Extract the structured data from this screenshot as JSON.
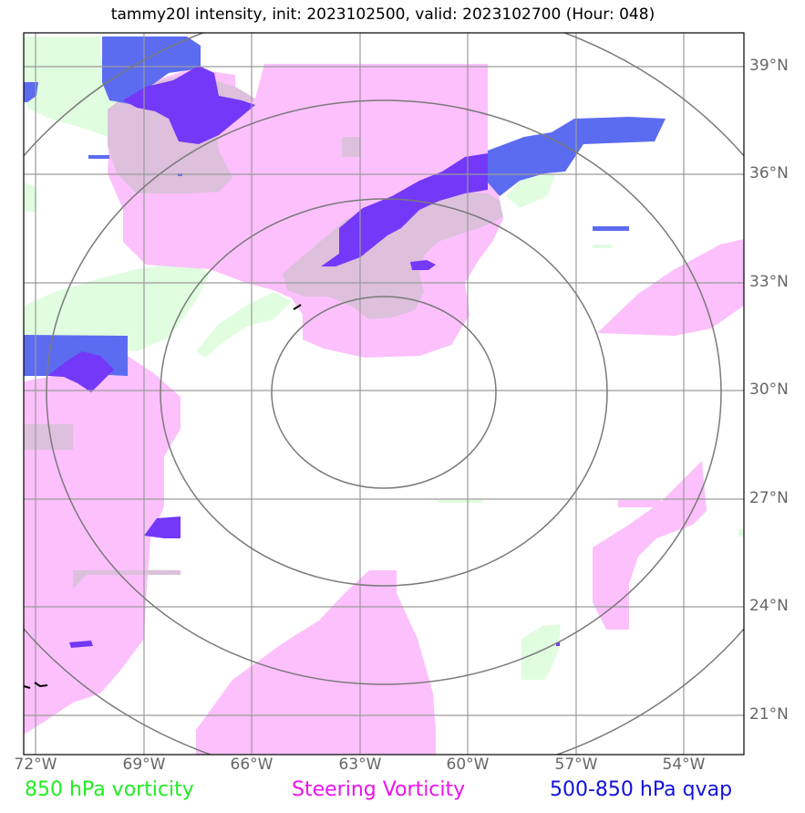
{
  "title": "tammy20l intensity, init: 2023102500, valid: 2023102700 (Hour: 048)",
  "lat_labels": [
    "39°N",
    "36°N",
    "33°N",
    "30°N",
    "27°N",
    "24°N",
    "21°N"
  ],
  "lon_labels": [
    "72°W",
    "69°W",
    "66°W",
    "63°W",
    "60°W",
    "57°W",
    "54°W"
  ],
  "legend": {
    "vort850": {
      "label": "850 hPa vorticity",
      "color": "#22ee22"
    },
    "steering": {
      "label": "Steering Vorticity",
      "color": "#ee11ee"
    },
    "qvap": {
      "label": "500-850 hPa qvap",
      "color": "#1111dd"
    }
  },
  "colors": {
    "vort850_fill": "#e0fde0",
    "steering_fill": "#fcc0fc",
    "overlap_fill": "#dcc0dc",
    "qvap_fill": "#5c6cf0",
    "qvap_dark_fill": "#7338f8",
    "grid": "#9a9a9a",
    "range_rings": "#7a7a7a",
    "coast": "#000000"
  },
  "storm_center": {
    "lon": -62.4,
    "lat": 30.0
  },
  "range_rings_count": 4
}
